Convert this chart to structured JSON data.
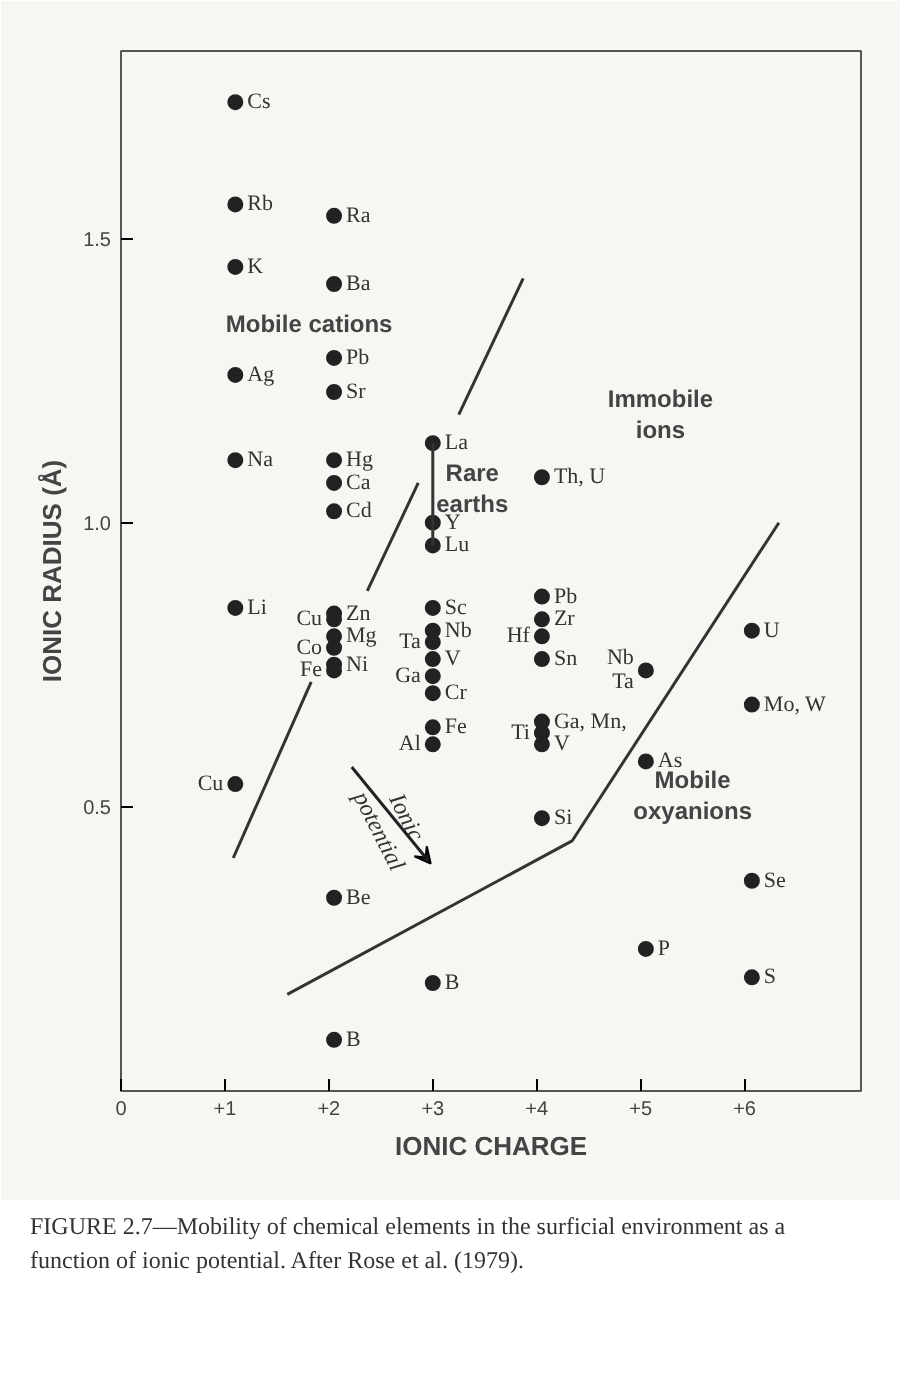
{
  "chart_data": {
    "type": "scatter",
    "xlabel": "IONIC CHARGE",
    "ylabel": "IONIC RADIUS (Å)",
    "xlim": [
      0,
      7.12
    ],
    "ylim": [
      0,
      1.83
    ],
    "xticks": [
      0,
      {
        "value": 1,
        "label": "+1"
      },
      {
        "value": 2,
        "label": "+2"
      },
      {
        "value": 3,
        "label": "+3"
      },
      {
        "value": 4,
        "label": "+4"
      },
      {
        "value": 5,
        "label": "+5"
      },
      {
        "value": 6,
        "label": "+6"
      }
    ],
    "yticks": [
      0.5,
      {
        "value": 1.0,
        "label": "1.0"
      },
      1.5
    ],
    "grid": false,
    "marker": "circle",
    "series": [
      {
        "name": "Cs",
        "color": "#222222",
        "x": [
          1.1
        ],
        "values": [
          1.74
        ]
      },
      {
        "name": "Rb",
        "color": "#222222",
        "x": [
          1.1
        ],
        "values": [
          1.56
        ]
      },
      {
        "name": "K",
        "color": "#222222",
        "x": [
          1.1
        ],
        "values": [
          1.45
        ]
      },
      {
        "name": "Ag",
        "color": "#222222",
        "x": [
          1.1
        ],
        "values": [
          1.26
        ]
      },
      {
        "name": "Na",
        "color": "#222222",
        "x": [
          1.1
        ],
        "values": [
          1.11
        ]
      },
      {
        "name": "Li",
        "color": "#222222",
        "x": [
          1.1
        ],
        "values": [
          0.85
        ]
      },
      {
        "name": "Cu",
        "color": "#222222",
        "x": [
          1.1
        ],
        "values": [
          0.54
        ]
      },
      {
        "name": "Ra",
        "color": "#222222",
        "x": [
          2.05
        ],
        "values": [
          1.54
        ]
      },
      {
        "name": "Ba",
        "color": "#222222",
        "x": [
          2.05
        ],
        "values": [
          1.42
        ]
      },
      {
        "name": "Pb",
        "color": "#222222",
        "x": [
          2.05
        ],
        "values": [
          1.29
        ]
      },
      {
        "name": "Sr",
        "color": "#222222",
        "x": [
          2.05
        ],
        "values": [
          1.23
        ]
      },
      {
        "name": "Hg",
        "color": "#222222",
        "x": [
          2.05
        ],
        "values": [
          1.11
        ]
      },
      {
        "name": "Ca",
        "color": "#222222",
        "x": [
          2.05
        ],
        "values": [
          1.07
        ]
      },
      {
        "name": "Cd",
        "color": "#222222",
        "x": [
          2.05
        ],
        "values": [
          1.02
        ]
      },
      {
        "name": "Zn",
        "color": "#222222",
        "x": [
          2.05
        ],
        "values": [
          0.84
        ]
      },
      {
        "name": "Cu",
        "color": "#222222",
        "x": [
          2.05
        ],
        "values": [
          0.83
        ]
      },
      {
        "name": "Mg",
        "color": "#222222",
        "x": [
          2.05
        ],
        "values": [
          0.8
        ]
      },
      {
        "name": "Co",
        "color": "#222222",
        "x": [
          2.05
        ],
        "values": [
          0.78
        ]
      },
      {
        "name": "Ni",
        "color": "#222222",
        "x": [
          2.05
        ],
        "values": [
          0.75
        ]
      },
      {
        "name": "Fe",
        "color": "#222222",
        "x": [
          2.05
        ],
        "values": [
          0.74
        ]
      },
      {
        "name": "Be",
        "color": "#222222",
        "x": [
          2.05
        ],
        "values": [
          0.34
        ]
      },
      {
        "name": "B",
        "color": "#222222",
        "x": [
          2.05
        ],
        "values": [
          0.09
        ]
      },
      {
        "name": "La",
        "color": "#222222",
        "x": [
          3.0
        ],
        "values": [
          1.14
        ]
      },
      {
        "name": "Y",
        "color": "#222222",
        "x": [
          3.0
        ],
        "values": [
          1.0
        ]
      },
      {
        "name": "Lu",
        "color": "#222222",
        "x": [
          3.0
        ],
        "values": [
          0.96
        ]
      },
      {
        "name": "Sc",
        "color": "#222222",
        "x": [
          3.0
        ],
        "values": [
          0.85
        ]
      },
      {
        "name": "Nb",
        "color": "#222222",
        "x": [
          3.0
        ],
        "values": [
          0.81
        ]
      },
      {
        "name": "Ta",
        "color": "#222222",
        "x": [
          3.0
        ],
        "values": [
          0.79
        ]
      },
      {
        "name": "V",
        "color": "#222222",
        "x": [
          3.0
        ],
        "values": [
          0.76
        ]
      },
      {
        "name": "Ga",
        "color": "#222222",
        "x": [
          3.0
        ],
        "values": [
          0.73
        ]
      },
      {
        "name": "Cr",
        "color": "#222222",
        "x": [
          3.0
        ],
        "values": [
          0.7
        ]
      },
      {
        "name": "Fe",
        "color": "#222222",
        "x": [
          3.0
        ],
        "values": [
          0.64
        ]
      },
      {
        "name": "Al",
        "color": "#222222",
        "x": [
          3.0
        ],
        "values": [
          0.61
        ]
      },
      {
        "name": "B",
        "color": "#222222",
        "x": [
          3.0
        ],
        "values": [
          0.19
        ]
      },
      {
        "name": "Th, U",
        "color": "#222222",
        "x": [
          4.05
        ],
        "values": [
          1.08
        ]
      },
      {
        "name": "Pb",
        "color": "#222222",
        "x": [
          4.05
        ],
        "values": [
          0.87
        ]
      },
      {
        "name": "Zr",
        "color": "#222222",
        "x": [
          4.05
        ],
        "values": [
          0.83
        ]
      },
      {
        "name": "Hf",
        "color": "#222222",
        "x": [
          4.05
        ],
        "values": [
          0.8
        ]
      },
      {
        "name": "Sn",
        "color": "#222222",
        "x": [
          4.05
        ],
        "values": [
          0.76
        ]
      },
      {
        "name": "Ga, Mn,",
        "color": "#222222",
        "x": [
          4.05
        ],
        "values": [
          0.65
        ]
      },
      {
        "name": "Ti",
        "color": "#222222",
        "x": [
          4.05
        ],
        "values": [
          0.63
        ]
      },
      {
        "name": "V",
        "color": "#222222",
        "x": [
          4.05
        ],
        "values": [
          0.61
        ]
      },
      {
        "name": "Si",
        "color": "#222222",
        "x": [
          4.05
        ],
        "values": [
          0.48
        ]
      },
      {
        "name": "Nb\nTa",
        "color": "#222222",
        "x": [
          5.05
        ],
        "values": [
          0.74
        ]
      },
      {
        "name": "As",
        "color": "#222222",
        "x": [
          5.05
        ],
        "values": [
          0.58
        ]
      },
      {
        "name": "P",
        "color": "#222222",
        "x": [
          5.05
        ],
        "values": [
          0.25
        ]
      },
      {
        "name": "U",
        "color": "#222222",
        "x": [
          6.07
        ],
        "values": [
          0.81
        ]
      },
      {
        "name": "Mo, W",
        "color": "#222222",
        "x": [
          6.07
        ],
        "values": [
          0.68
        ]
      },
      {
        "name": "Se",
        "color": "#222222",
        "x": [
          6.07
        ],
        "values": [
          0.37
        ]
      },
      {
        "name": "S",
        "color": "#222222",
        "x": [
          6.07
        ],
        "values": [
          0.2
        ]
      },
      {
        "type": "line",
        "marker": "none",
        "color": "#333333",
        "x": [
          3.87,
          3.25,
          null,
          2.86,
          2.37,
          null,
          1.83,
          1.08
        ],
        "values": [
          1.43,
          1.19,
          null,
          1.07,
          0.88,
          null,
          0.72,
          0.41
        ]
      },
      {
        "type": "line",
        "marker": "none",
        "color": "#333333",
        "x": [
          1.6,
          4.34,
          6.33
        ],
        "values": [
          0.17,
          0.44,
          1.0
        ]
      },
      {
        "type": "line",
        "marker": "none",
        "color": "#333333",
        "x": [
          3.0,
          3.0
        ],
        "values": [
          1.14,
          0.96
        ]
      }
    ],
    "annotations": [
      "Mobile cations",
      "Immobile\nions",
      "Rare\nearths",
      "Mobile\noxyanions",
      "Ionic\npotential",
      "FIGURE 2.7—Mobility of chemical elements in the surficial environment as a function of ionic potential. After Rose et al. (1979)."
    ]
  }
}
